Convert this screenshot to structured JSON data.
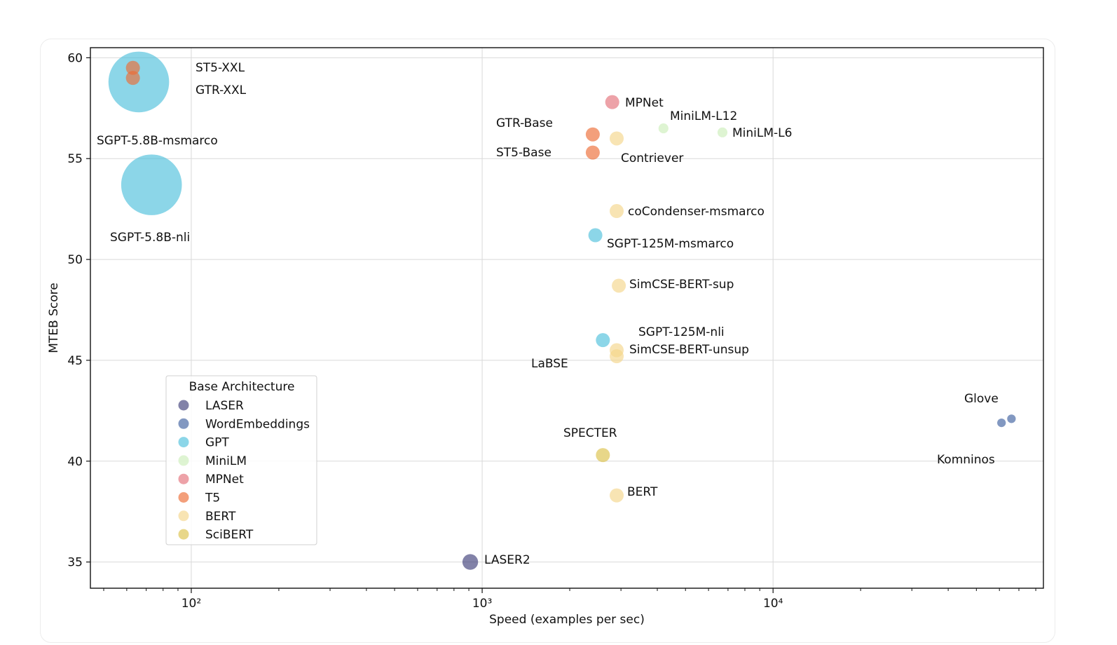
{
  "chart_data": {
    "type": "scatter",
    "title": "",
    "xlabel": "Speed (examples per sec)",
    "ylabel": "MTEB Score",
    "x_scale": "log",
    "xlim": [
      45,
      85000
    ],
    "ylim": [
      33.7,
      60.5
    ],
    "x_ticks": [
      {
        "value": 100,
        "label": "10²"
      },
      {
        "value": 1000,
        "label": "10³"
      },
      {
        "value": 10000,
        "label": "10⁴"
      }
    ],
    "y_ticks": [
      35,
      40,
      45,
      50,
      55,
      60
    ],
    "grid": true,
    "legend": {
      "title": "Base Architecture",
      "placement": "lower-left",
      "entries": [
        "LASER",
        "WordEmbeddings",
        "GPT",
        "MiniLM",
        "MPNet",
        "T5",
        "BERT",
        "SciBERT"
      ]
    },
    "architecture_colors": {
      "LASER": "#3f3f7a",
      "WordEmbeddings": "#3f61a0",
      "GPT": "#4fc0dc",
      "MiniLM": "#cdeeba",
      "MPNet": "#e4707a",
      "T5": "#ec6b34",
      "BERT": "#f5d68a",
      "SciBERT": "#dcc14a"
    },
    "points": [
      {
        "label": "SGPT-5.8B-msmarco",
        "arch": "GPT",
        "x": 66,
        "y": 58.8,
        "size": 7500
      },
      {
        "label": "ST5-XXL",
        "arch": "T5",
        "x": 63,
        "y": 59.5,
        "size": 400
      },
      {
        "label": "GTR-XXL",
        "arch": "T5",
        "x": 63,
        "y": 59.0,
        "size": 400
      },
      {
        "label": "SGPT-5.8B-nli",
        "arch": "GPT",
        "x": 73,
        "y": 53.7,
        "size": 7500
      },
      {
        "label": "MPNet",
        "arch": "MPNet",
        "x": 2800,
        "y": 57.8,
        "size": 400
      },
      {
        "label": "MiniLM-L12",
        "arch": "MiniLM",
        "x": 4200,
        "y": 56.5,
        "size": 200
      },
      {
        "label": "MiniLM-L6",
        "arch": "MiniLM",
        "x": 6700,
        "y": 56.3,
        "size": 200
      },
      {
        "label": "GTR-Base",
        "arch": "T5",
        "x": 2400,
        "y": 56.2,
        "size": 400
      },
      {
        "label": "Contriever",
        "arch": "BERT",
        "x": 2900,
        "y": 56.0,
        "size": 400
      },
      {
        "label": "ST5-Base",
        "arch": "T5",
        "x": 2400,
        "y": 55.3,
        "size": 400
      },
      {
        "label": "coCondenser-msmarco",
        "arch": "BERT",
        "x": 2900,
        "y": 52.4,
        "size": 400
      },
      {
        "label": "SGPT-125M-msmarco",
        "arch": "GPT",
        "x": 2450,
        "y": 51.2,
        "size": 400
      },
      {
        "label": "SimCSE-BERT-sup",
        "arch": "BERT",
        "x": 2950,
        "y": 48.7,
        "size": 400
      },
      {
        "label": "SGPT-125M-nli",
        "arch": "GPT",
        "x": 2600,
        "y": 46.0,
        "size": 400
      },
      {
        "label": "SimCSE-BERT-unsup",
        "arch": "BERT",
        "x": 2900,
        "y": 45.5,
        "size": 400
      },
      {
        "label": "LaBSE",
        "arch": "BERT",
        "x": 2900,
        "y": 45.2,
        "size": 400
      },
      {
        "label": "Glove",
        "arch": "WordEmbeddings",
        "x": 66000,
        "y": 42.1,
        "size": 150
      },
      {
        "label": "Komninos",
        "arch": "WordEmbeddings",
        "x": 61000,
        "y": 41.9,
        "size": 150
      },
      {
        "label": "SPECTER",
        "arch": "SciBERT",
        "x": 2600,
        "y": 40.3,
        "size": 400
      },
      {
        "label": "BERT",
        "arch": "BERT",
        "x": 2900,
        "y": 38.3,
        "size": 400
      },
      {
        "label": "LASER2",
        "arch": "LASER",
        "x": 910,
        "y": 35.0,
        "size": 500
      }
    ]
  }
}
